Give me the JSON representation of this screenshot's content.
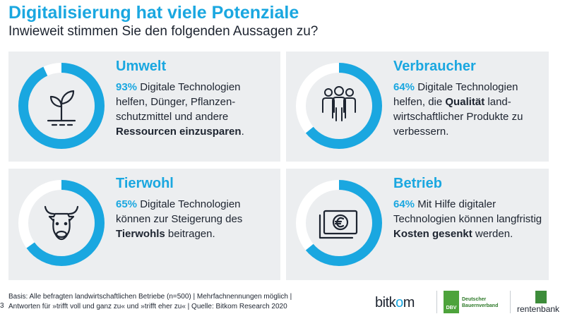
{
  "header": {
    "title": "Digitalisierung hat viele Potenziale",
    "subtitle": "Inwieweit stimmen Sie den folgenden Aussagen zu?"
  },
  "accent_color": "#1aa7e0",
  "cards": [
    {
      "title": "Umwelt",
      "icon": "plant-icon",
      "percent_label": "93%",
      "percent_value": 93,
      "text_parts": [
        " Digitale Technologien helfen, Dünger, Pflanzen-schutzmittel und andere ",
        "Ressourcen einzusparen",
        "."
      ]
    },
    {
      "title": "Verbraucher",
      "icon": "people-icon",
      "percent_label": "64%",
      "percent_value": 64,
      "text_parts": [
        " Digitale Technologien helfen, die ",
        "Qualität",
        " land-wirtschaftlicher Produkte zu verbessern."
      ]
    },
    {
      "title": "Tierwohl",
      "icon": "cow-icon",
      "percent_label": "65%",
      "percent_value": 65,
      "text_parts": [
        " Digitale Technologien können zur Steigerung des ",
        "Tierwohls",
        " beitragen."
      ]
    },
    {
      "title": "Betrieb",
      "icon": "euro-banknote-icon",
      "percent_label": "64%",
      "percent_value": 64,
      "text_parts": [
        " Mit Hilfe digitaler Technologien können langfristig ",
        "Kosten gesenkt",
        " werden."
      ]
    }
  ],
  "footer": {
    "line1": "Basis: Alle befragten landwirtschaftlichen Betriebe (n=500) | Mehrfachnennungen möglich |",
    "line2": "Antworten für »trifft voll und ganz zu« und »trifft eher zu«  | Quelle: Bitkom Research 2020",
    "page_number": "3"
  },
  "logos": {
    "bitkom_pre": "bitk",
    "bitkom_o": "o",
    "bitkom_post": "m",
    "dbv_box": "DBV",
    "dbv_text_1": "Deutscher",
    "dbv_text_2": "Bauernverband",
    "rentenbank": "rentenbank"
  }
}
